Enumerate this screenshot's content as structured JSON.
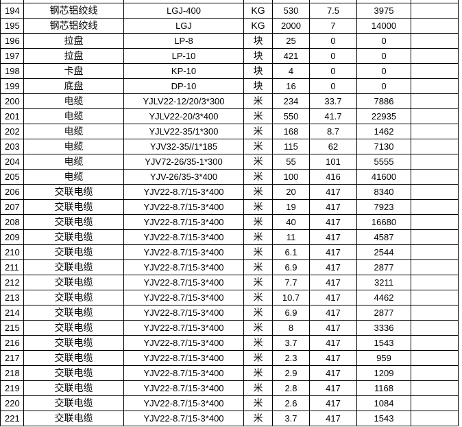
{
  "sheet": {
    "rows": [
      {
        "no": "194",
        "name": "钢芯铝绞线",
        "spec": "LGJ-400",
        "unit": "KG",
        "qty": "530",
        "price": "7.5",
        "amount": "3975"
      },
      {
        "no": "195",
        "name": "钢芯铝绞线",
        "spec": "LGJ",
        "unit": "KG",
        "qty": "2000",
        "price": "7",
        "amount": "14000"
      },
      {
        "no": "196",
        "name": "拉盘",
        "spec": "LP-8",
        "unit": "块",
        "qty": "25",
        "price": "0",
        "amount": "0"
      },
      {
        "no": "197",
        "name": "拉盘",
        "spec": "LP-10",
        "unit": "块",
        "qty": "421",
        "price": "0",
        "amount": "0"
      },
      {
        "no": "198",
        "name": "卡盘",
        "spec": "KP-10",
        "unit": "块",
        "qty": "4",
        "price": "0",
        "amount": "0"
      },
      {
        "no": "199",
        "name": "底盘",
        "spec": "DP-10",
        "unit": "块",
        "qty": "16",
        "price": "0",
        "amount": "0"
      },
      {
        "no": "200",
        "name": "电缆",
        "spec": "YJLV22-12/20/3*300",
        "unit": "米",
        "qty": "234",
        "price": "33.7",
        "amount": "7886"
      },
      {
        "no": "201",
        "name": "电缆",
        "spec": "YJLV22-20/3*400",
        "unit": "米",
        "qty": "550",
        "price": "41.7",
        "amount": "22935"
      },
      {
        "no": "202",
        "name": "电缆",
        "spec": "YJLV22-35/1*300",
        "unit": "米",
        "qty": "168",
        "price": "8.7",
        "amount": "1462"
      },
      {
        "no": "203",
        "name": "电缆",
        "spec": "YJV32-35//1*185",
        "unit": "米",
        "qty": "115",
        "price": "62",
        "amount": "7130"
      },
      {
        "no": "204",
        "name": "电缆",
        "spec": "YJV72-26/35-1*300",
        "unit": "米",
        "qty": "55",
        "price": "101",
        "amount": "5555"
      },
      {
        "no": "205",
        "name": "电缆",
        "spec": "YJV-26/35-3*400",
        "unit": "米",
        "qty": "100",
        "price": "416",
        "amount": "41600"
      },
      {
        "no": "206",
        "name": "交联电缆",
        "spec": "YJV22-8.7/15-3*400",
        "unit": "米",
        "qty": "20",
        "price": "417",
        "amount": "8340"
      },
      {
        "no": "207",
        "name": "交联电缆",
        "spec": "YJV22-8.7/15-3*400",
        "unit": "米",
        "qty": "19",
        "price": "417",
        "amount": "7923"
      },
      {
        "no": "208",
        "name": "交联电缆",
        "spec": "YJV22-8.7/15-3*400",
        "unit": "米",
        "qty": "40",
        "price": "417",
        "amount": "16680"
      },
      {
        "no": "209",
        "name": "交联电缆",
        "spec": "YJV22-8.7/15-3*400",
        "unit": "米",
        "qty": "11",
        "price": "417",
        "amount": "4587"
      },
      {
        "no": "210",
        "name": "交联电缆",
        "spec": "YJV22-8.7/15-3*400",
        "unit": "米",
        "qty": "6.1",
        "price": "417",
        "amount": "2544"
      },
      {
        "no": "211",
        "name": "交联电缆",
        "spec": "YJV22-8.7/15-3*400",
        "unit": "米",
        "qty": "6.9",
        "price": "417",
        "amount": "2877"
      },
      {
        "no": "212",
        "name": "交联电缆",
        "spec": "YJV22-8.7/15-3*400",
        "unit": "米",
        "qty": "7.7",
        "price": "417",
        "amount": "3211"
      },
      {
        "no": "213",
        "name": "交联电缆",
        "spec": "YJV22-8.7/15-3*400",
        "unit": "米",
        "qty": "10.7",
        "price": "417",
        "amount": "4462"
      },
      {
        "no": "214",
        "name": "交联电缆",
        "spec": "YJV22-8.7/15-3*400",
        "unit": "米",
        "qty": "6.9",
        "price": "417",
        "amount": "2877"
      },
      {
        "no": "215",
        "name": "交联电缆",
        "spec": "YJV22-8.7/15-3*400",
        "unit": "米",
        "qty": "8",
        "price": "417",
        "amount": "3336"
      },
      {
        "no": "216",
        "name": "交联电缆",
        "spec": "YJV22-8.7/15-3*400",
        "unit": "米",
        "qty": "3.7",
        "price": "417",
        "amount": "1543"
      },
      {
        "no": "217",
        "name": "交联电缆",
        "spec": "YJV22-8.7/15-3*400",
        "unit": "米",
        "qty": "2.3",
        "price": "417",
        "amount": "959"
      },
      {
        "no": "218",
        "name": "交联电缆",
        "spec": "YJV22-8.7/15-3*400",
        "unit": "米",
        "qty": "2.9",
        "price": "417",
        "amount": "1209"
      },
      {
        "no": "219",
        "name": "交联电缆",
        "spec": "YJV22-8.7/15-3*400",
        "unit": "米",
        "qty": "2.8",
        "price": "417",
        "amount": "1168"
      },
      {
        "no": "220",
        "name": "交联电缆",
        "spec": "YJV22-8.7/15-3*400",
        "unit": "米",
        "qty": "2.6",
        "price": "417",
        "amount": "1084"
      },
      {
        "no": "221",
        "name": "交联电缆",
        "spec": "YJV22-8.7/15-3*400",
        "unit": "米",
        "qty": "3.7",
        "price": "417",
        "amount": "1543"
      }
    ]
  }
}
